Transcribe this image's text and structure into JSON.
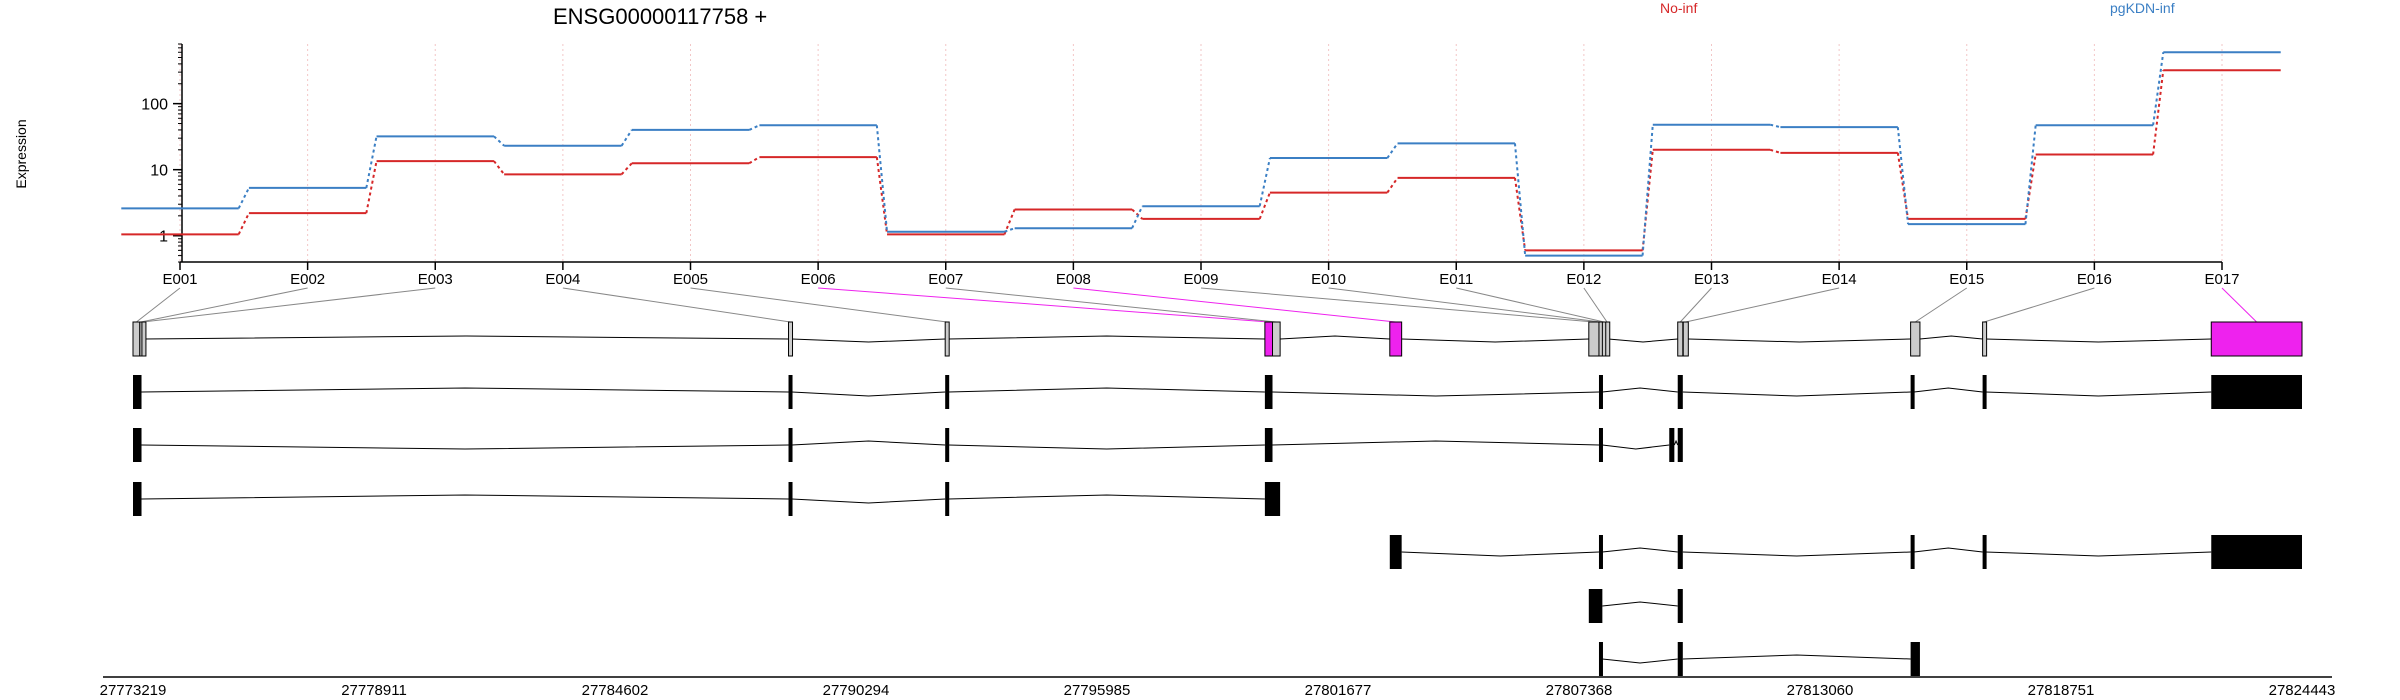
{
  "header": {
    "gene_title": "ENSG00000117758 +",
    "legend": [
      {
        "name": "No-inf",
        "color": "#d62728"
      },
      {
        "name": "pgKDN-inf",
        "color": "#3b7fc4"
      }
    ]
  },
  "colors": {
    "highlight": "#ee22ee",
    "exon_gray": "#cccccc",
    "transcript_exon": "#000000",
    "grid": "#f2c6c6"
  },
  "chart_data": {
    "type": "line",
    "title": "ENSG00000117758 +",
    "ylabel": "Expression",
    "ylim": [
      0.4,
      800
    ],
    "y_scale": "log",
    "y_ticks": [
      1,
      10,
      100
    ],
    "y_tick_labels": [
      "1",
      "10",
      "100"
    ],
    "categories": [
      "E001",
      "E002",
      "E003",
      "E004",
      "E005",
      "E006",
      "E007",
      "E008",
      "E009",
      "E010",
      "E011",
      "E012",
      "E013",
      "E014",
      "E015",
      "E016",
      "E017"
    ],
    "series": [
      {
        "name": "No-inf",
        "color": "#d62728",
        "values": [
          1.05,
          2.2,
          13.5,
          8.5,
          12.5,
          15.5,
          1.05,
          2.5,
          1.8,
          4.5,
          7.5,
          0.6,
          20,
          18,
          1.8,
          17,
          320
        ]
      },
      {
        "name": "pgKDN-inf",
        "color": "#3b7fc4",
        "values": [
          2.6,
          5.3,
          32,
          23,
          40,
          47,
          1.15,
          1.3,
          2.8,
          15,
          25,
          0.5,
          48,
          44,
          1.5,
          47,
          600
        ]
      }
    ],
    "grid": true,
    "genomic_axis": {
      "tick_labels": [
        "27773219",
        "27778911",
        "27784602",
        "27790294",
        "27795985",
        "27801677",
        "27807368",
        "27813060",
        "27818751",
        "27824443"
      ],
      "range": [
        27773219,
        27824443
      ]
    },
    "exon_track": {
      "exons": [
        {
          "id": "E001",
          "start": 27773219,
          "end": 27773380,
          "highlight": false
        },
        {
          "id": "E002",
          "start": 27773380,
          "end": 27773430,
          "highlight": false
        },
        {
          "id": "E003",
          "start": 27773430,
          "end": 27773470,
          "highlight": false
        },
        {
          "id": "E004",
          "start": 27788700,
          "end": 27788780,
          "highlight": false
        },
        {
          "id": "E005",
          "start": 27792400,
          "end": 27792480,
          "highlight": false
        },
        {
          "id": "E006",
          "start": 27799950,
          "end": 27800130,
          "highlight": true
        },
        {
          "id": "E007",
          "start": 27800130,
          "end": 27800310,
          "highlight": false
        },
        {
          "id": "E008",
          "start": 27802900,
          "end": 27803180,
          "highlight": true
        },
        {
          "id": "E009",
          "start": 27807600,
          "end": 27807840,
          "highlight": false
        },
        {
          "id": "E010",
          "start": 27807840,
          "end": 27807920,
          "highlight": false
        },
        {
          "id": "E011",
          "start": 27807920,
          "end": 27808000,
          "highlight": false
        },
        {
          "id": "E012",
          "start": 27808000,
          "end": 27808060,
          "highlight": false
        },
        {
          "id": "E013",
          "start": 27809700,
          "end": 27809820,
          "highlight": false
        },
        {
          "id": "E014",
          "start": 27809830,
          "end": 27809950,
          "highlight": false
        },
        {
          "id": "E015",
          "start": 27815200,
          "end": 27815420,
          "highlight": false
        },
        {
          "id": "E016",
          "start": 27816900,
          "end": 27816970,
          "highlight": false
        },
        {
          "id": "E017",
          "start": 27822300,
          "end": 27824443,
          "highlight": true
        }
      ]
    },
    "transcripts": [
      {
        "exons": [
          [
            27773219,
            27773420
          ],
          [
            27788700,
            27788780
          ],
          [
            27792400,
            27792480
          ],
          [
            27799950,
            27800130
          ],
          [
            27807840,
            27807920
          ],
          [
            27809700,
            27809820
          ],
          [
            27815200,
            27815280
          ],
          [
            27816900,
            27816970
          ],
          [
            27822300,
            27824443
          ]
        ]
      },
      {
        "exons": [
          [
            27773219,
            27773420
          ],
          [
            27788700,
            27788780
          ],
          [
            27792400,
            27792480
          ],
          [
            27799950,
            27800130
          ],
          [
            27807840,
            27807920
          ],
          [
            27809500,
            27809620
          ],
          [
            27809700,
            27809820
          ]
        ]
      },
      {
        "exons": [
          [
            27773219,
            27773420
          ],
          [
            27788700,
            27788780
          ],
          [
            27792400,
            27792480
          ],
          [
            27799950,
            27800310
          ]
        ]
      },
      {
        "exons": [
          [
            27802900,
            27803180
          ],
          [
            27807840,
            27807920
          ],
          [
            27809700,
            27809820
          ],
          [
            27815200,
            27815280
          ],
          [
            27816900,
            27816970
          ],
          [
            27822300,
            27824443
          ]
        ]
      },
      {
        "exons": [
          [
            27807600,
            27807920
          ],
          [
            27809700,
            27809820
          ]
        ]
      },
      {
        "exons": [
          [
            27807840,
            27807920
          ],
          [
            27809700,
            27809820
          ],
          [
            27815200,
            27815420
          ]
        ]
      }
    ]
  }
}
